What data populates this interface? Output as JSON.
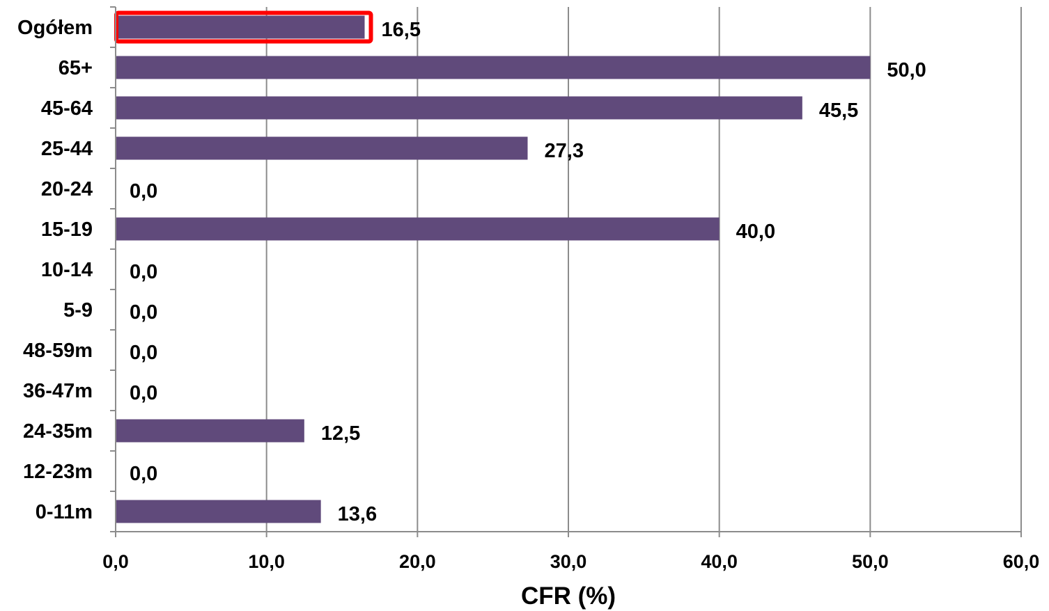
{
  "chart_data": {
    "type": "bar",
    "orientation": "horizontal",
    "categories": [
      "Ogółem",
      "65+",
      "45-64",
      "25-44",
      "20-24",
      "15-19",
      "10-14",
      "5-9",
      "48-59m",
      "36-47m",
      "24-35m",
      "12-23m",
      "0-11m"
    ],
    "values": [
      16.5,
      50.0,
      45.5,
      27.3,
      0.0,
      40.0,
      0.0,
      0.0,
      0.0,
      0.0,
      12.5,
      0.0,
      13.6
    ],
    "value_labels": [
      "16,5",
      "50,0",
      "45,5",
      "27,3",
      "0,0",
      "40,0",
      "0,0",
      "0,0",
      "0,0",
      "0,0",
      "12,5",
      "0,0",
      "13,6"
    ],
    "xlabel": "CFR (%)",
    "xlim": [
      0,
      60
    ],
    "xticks": [
      0,
      10,
      20,
      30,
      40,
      50,
      60
    ],
    "xtick_labels": [
      "0,0",
      "10,0",
      "20,0",
      "30,0",
      "40,0",
      "50,0",
      "60,0"
    ],
    "grid": "vertical",
    "legend": "none",
    "bar_color": "#604a7b",
    "highlight_color": "#ff0000",
    "highlight_index": 0
  }
}
